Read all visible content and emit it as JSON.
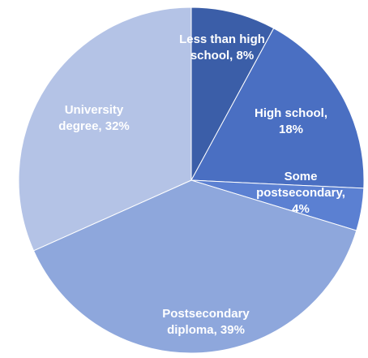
{
  "chart_data": {
    "type": "pie",
    "title": "",
    "slices": [
      {
        "label": "Less than high school",
        "value": 8,
        "data_label": [
          "Less than high",
          "school, 8%"
        ],
        "color": "#3B5EA8"
      },
      {
        "label": "High school",
        "value": 18,
        "data_label": [
          "High school,",
          "18%"
        ],
        "color": "#4A6FC2"
      },
      {
        "label": "Some postsecondary",
        "value": 4,
        "data_label": [
          "Some",
          "postsecondary,",
          "4%"
        ],
        "color": "#5B80D2"
      },
      {
        "label": "Postsecondary diploma",
        "value": 39,
        "data_label": [
          "Postsecondary",
          "diploma, 39%"
        ],
        "color": "#8EA7DC"
      },
      {
        "label": "University degree",
        "value": 32,
        "data_label": [
          "University",
          "degree, 32%"
        ],
        "color": "#B4C3E6"
      }
    ],
    "start_angle_deg": 0,
    "direction": "clockwise",
    "legend": "none"
  }
}
